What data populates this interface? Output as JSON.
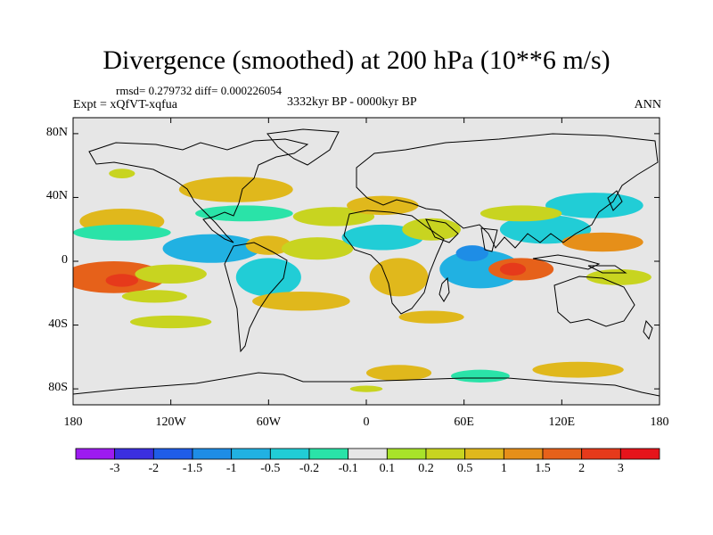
{
  "title": "Divergence (smoothed) at 200 hPa (10**6 m/s)",
  "stats": "rmsd= 0.279732 diff= 0.000226054",
  "experiment": "Expt = xQfVT-xqfua",
  "period": "3332kyr BP - 0000kyr BP",
  "season": "ANN",
  "map": {
    "projection": "cylindrical equidistant",
    "lon_range": [
      -180,
      180
    ],
    "lat_range": [
      -90,
      90
    ],
    "lat_ticks": [
      {
        "value": 80,
        "label": "80N"
      },
      {
        "value": 40,
        "label": "40N"
      },
      {
        "value": 0,
        "label": "0"
      },
      {
        "value": -40,
        "label": "40S"
      },
      {
        "value": -80,
        "label": "80S"
      }
    ],
    "lon_ticks": [
      {
        "value": -180,
        "label": "180"
      },
      {
        "value": -120,
        "label": "120W"
      },
      {
        "value": -60,
        "label": "60W"
      },
      {
        "value": 0,
        "label": "0"
      },
      {
        "value": 60,
        "label": "60E"
      },
      {
        "value": 120,
        "label": "120E"
      },
      {
        "value": 180,
        "label": "180"
      }
    ],
    "background_color": "#e6e6e6",
    "coastline_color": "#000000"
  },
  "colorbar": {
    "labels": [
      "-3",
      "-2",
      "-1.5",
      "-1",
      "-0.5",
      "-0.2",
      "-0.1",
      "0.1",
      "0.2",
      "0.5",
      "1",
      "1.5",
      "2",
      "3"
    ],
    "colors": [
      "#9d1bf0",
      "#3b2fe0",
      "#1f5de8",
      "#1e8de6",
      "#21b1e2",
      "#21cdd6",
      "#2ae3a8",
      "#e6e6e6",
      "#a8e32a",
      "#c8d420",
      "#e0b81c",
      "#e68f19",
      "#e6611a",
      "#e63a1b",
      "#e6141b"
    ]
  },
  "field_blobs": [
    {
      "lon": -155,
      "lat": -10,
      "rlon": 32,
      "rlat": 10,
      "level": "1.5"
    },
    {
      "lon": -150,
      "lat": -12,
      "rlon": 10,
      "rlat": 4,
      "level": "2"
    },
    {
      "lon": -150,
      "lat": 25,
      "rlon": 26,
      "rlat": 8,
      "level": "0.5"
    },
    {
      "lon": -150,
      "lat": 18,
      "rlon": 30,
      "rlat": 5,
      "level": "-0.2"
    },
    {
      "lon": -120,
      "lat": -8,
      "rlon": 22,
      "rlat": 6,
      "level": "0.2"
    },
    {
      "lon": -95,
      "lat": 8,
      "rlon": 30,
      "rlat": 9,
      "level": "-1"
    },
    {
      "lon": -80,
      "lat": 45,
      "rlon": 35,
      "rlat": 8,
      "level": "0.5"
    },
    {
      "lon": -75,
      "lat": 30,
      "rlon": 30,
      "rlat": 5,
      "level": "-0.2"
    },
    {
      "lon": -60,
      "lat": -10,
      "rlon": 20,
      "rlat": 12,
      "level": "-0.5"
    },
    {
      "lon": -60,
      "lat": 10,
      "rlon": 14,
      "rlat": 6,
      "level": "0.5"
    },
    {
      "lon": -130,
      "lat": -22,
      "rlon": 20,
      "rlat": 4,
      "level": "0.2"
    },
    {
      "lon": -40,
      "lat": -25,
      "rlon": 30,
      "rlat": 6,
      "level": "0.5"
    },
    {
      "lon": -30,
      "lat": 8,
      "rlon": 22,
      "rlat": 7,
      "level": "0.2"
    },
    {
      "lon": -20,
      "lat": 28,
      "rlon": 25,
      "rlat": 6,
      "level": "0.2"
    },
    {
      "lon": 10,
      "lat": 15,
      "rlon": 25,
      "rlat": 8,
      "level": "-0.5"
    },
    {
      "lon": 10,
      "lat": 35,
      "rlon": 22,
      "rlat": 6,
      "level": "0.5"
    },
    {
      "lon": 20,
      "lat": -10,
      "rlon": 18,
      "rlat": 12,
      "level": "0.5"
    },
    {
      "lon": 40,
      "lat": 20,
      "rlon": 18,
      "rlat": 7,
      "level": "0.2"
    },
    {
      "lon": 70,
      "lat": -5,
      "rlon": 25,
      "rlat": 12,
      "level": "-1"
    },
    {
      "lon": 65,
      "lat": 5,
      "rlon": 10,
      "rlat": 5,
      "level": "-1.5"
    },
    {
      "lon": 95,
      "lat": -5,
      "rlon": 20,
      "rlat": 7,
      "level": "1.5"
    },
    {
      "lon": 90,
      "lat": -5,
      "rlon": 8,
      "rlat": 4,
      "level": "2"
    },
    {
      "lon": 110,
      "lat": 20,
      "rlon": 28,
      "rlat": 9,
      "level": "-0.5"
    },
    {
      "lon": 145,
      "lat": 12,
      "rlon": 25,
      "rlat": 6,
      "level": "1"
    },
    {
      "lon": 140,
      "lat": 35,
      "rlon": 30,
      "rlat": 8,
      "level": "-0.5"
    },
    {
      "lon": 155,
      "lat": -10,
      "rlon": 20,
      "rlat": 5,
      "level": "0.2"
    },
    {
      "lon": 95,
      "lat": 30,
      "rlon": 25,
      "rlat": 5,
      "level": "0.2"
    },
    {
      "lon": 20,
      "lat": -70,
      "rlon": 20,
      "rlat": 5,
      "level": "0.5"
    },
    {
      "lon": 70,
      "lat": -72,
      "rlon": 18,
      "rlat": 4,
      "level": "-0.2"
    },
    {
      "lon": 130,
      "lat": -68,
      "rlon": 28,
      "rlat": 5,
      "level": "0.5"
    },
    {
      "lon": -150,
      "lat": 55,
      "rlon": 8,
      "rlat": 3,
      "level": "0.2"
    },
    {
      "lon": -120,
      "lat": -38,
      "rlon": 25,
      "rlat": 4,
      "level": "0.2"
    },
    {
      "lon": 40,
      "lat": -35,
      "rlon": 20,
      "rlat": 4,
      "level": "0.5"
    },
    {
      "lon": 0,
      "lat": -80,
      "rlon": 10,
      "rlat": 2,
      "level": "0.2"
    }
  ]
}
